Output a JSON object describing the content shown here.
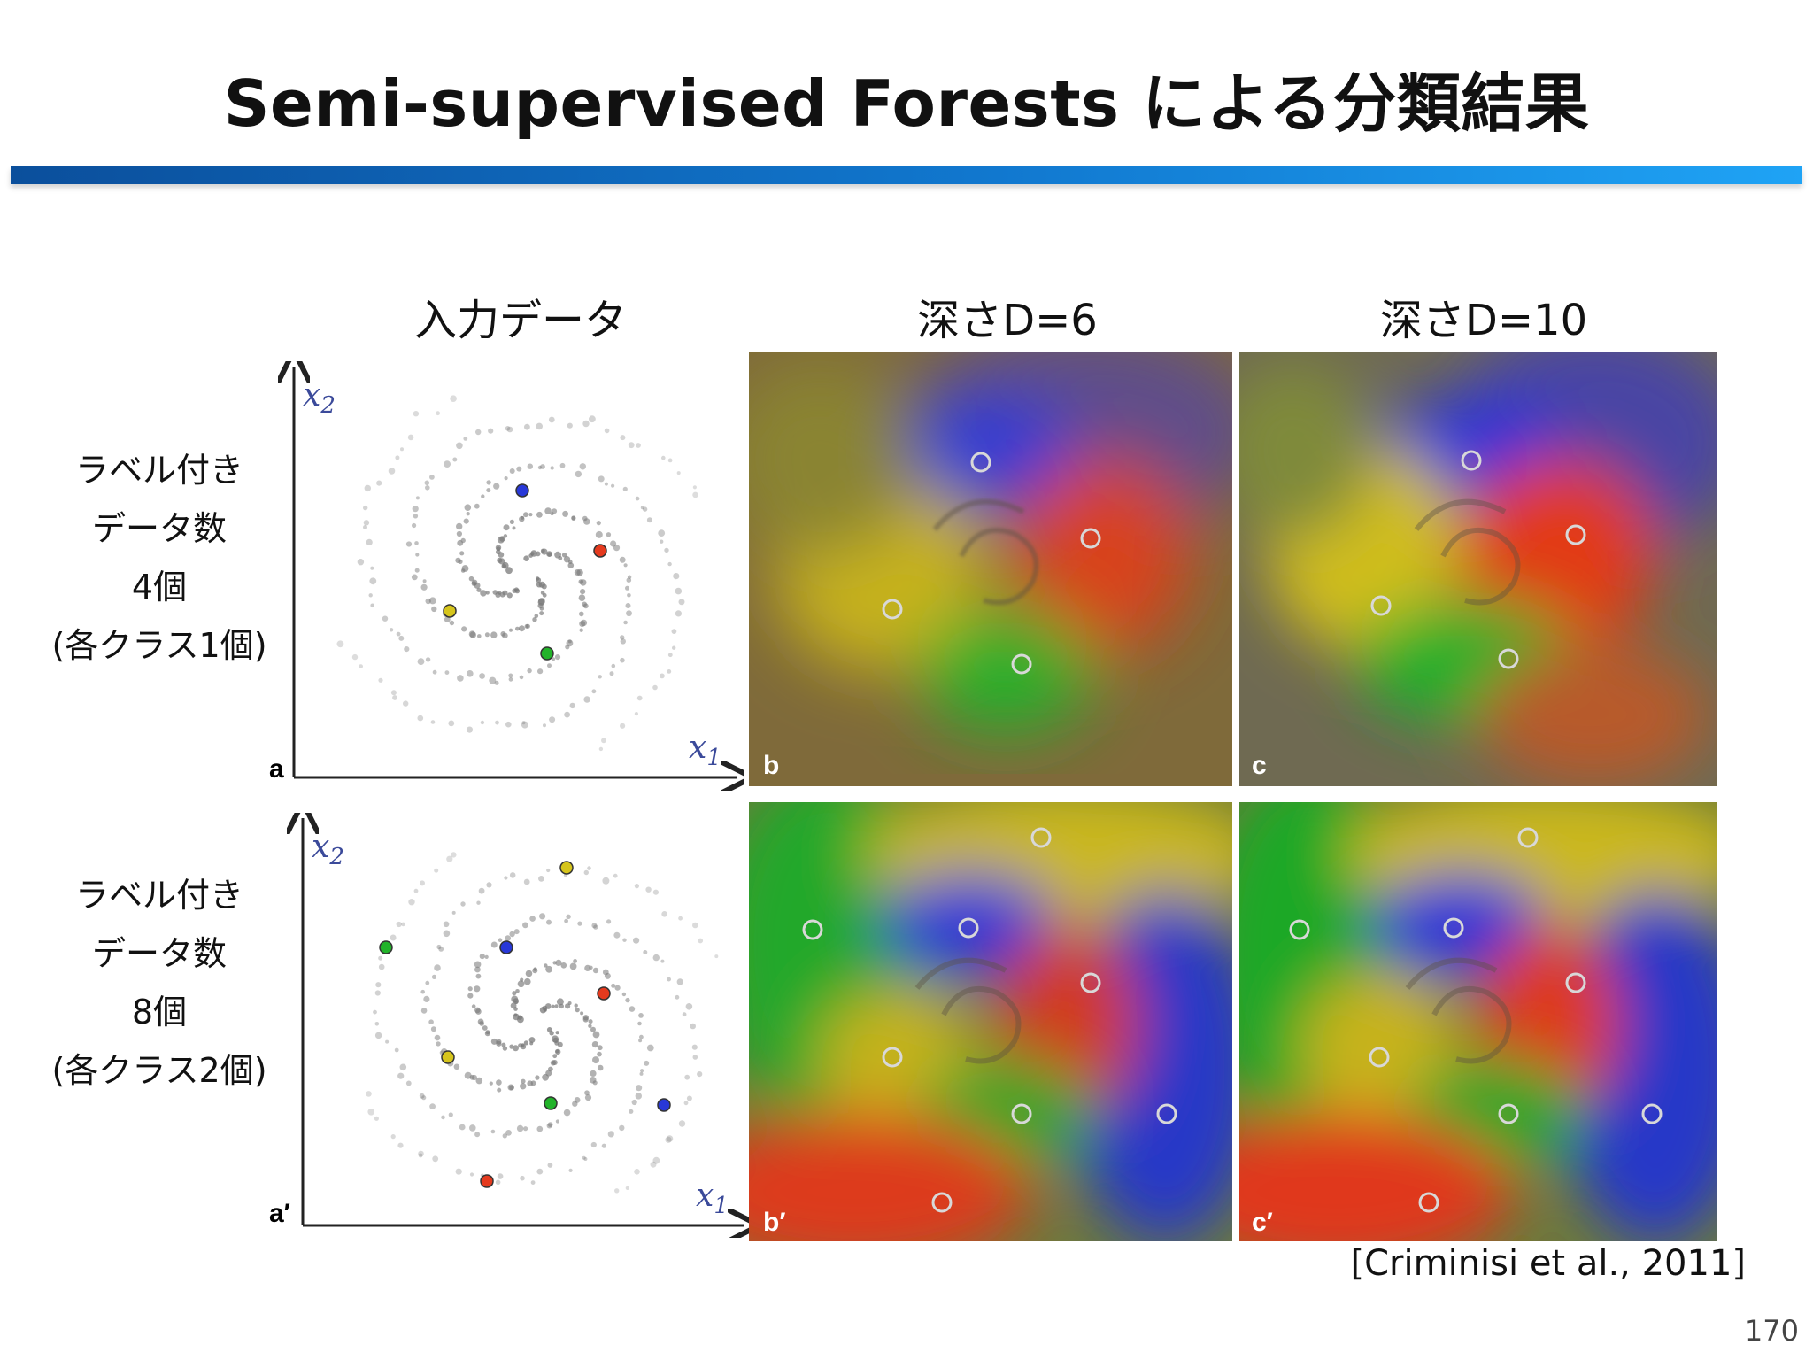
{
  "slide": {
    "title": "Semi-supervised Forests による分類結果",
    "columns": [
      "入力データ",
      "深さD=6",
      "深さD=10"
    ],
    "rows": [
      {
        "lines": [
          "ラベル付き",
          "データ数",
          "4個",
          "(各クラス1個)"
        ]
      },
      {
        "lines": [
          "ラベル付き",
          "データ数",
          "8個",
          "(各クラス2個)"
        ]
      }
    ],
    "panels": {
      "a": "a",
      "b": "b",
      "c": "c",
      "a2": "a′",
      "b2": "b′",
      "c2": "c′"
    },
    "axes": {
      "x": "x",
      "x_sub": "1",
      "y": "x",
      "y_sub": "2"
    },
    "citation": "[Criminisi et al., 2011]",
    "page_number": "170"
  },
  "colors": {
    "red": "#e53a1e",
    "green": "#22b32a",
    "blue": "#2838d8",
    "yellow": "#d6c51c",
    "accent_bar": "#1178cf"
  }
}
